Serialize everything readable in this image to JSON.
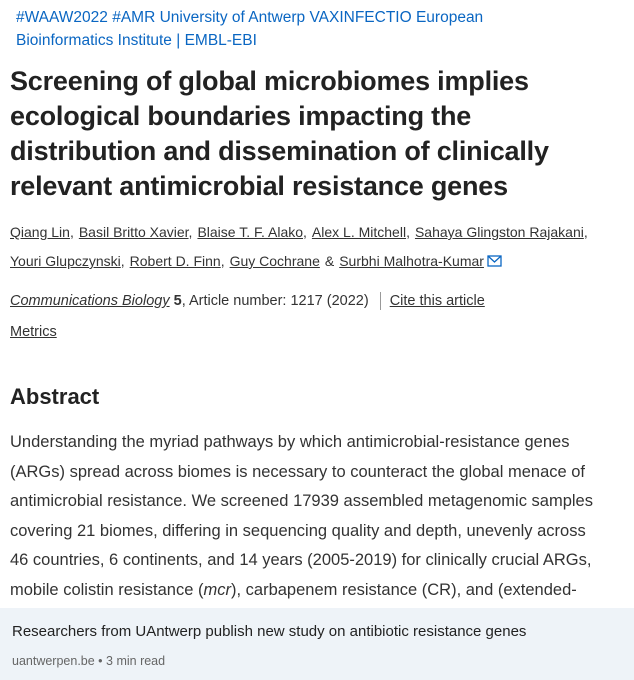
{
  "post": {
    "text": "#WAAW2022 #AMR University of Antwerp VAXINFECTIO European Bioinformatics Institute | EMBL-EBI"
  },
  "article": {
    "title_lines": [
      "Screening of global microbiomes implies",
      "ecological boundaries impacting the",
      "distribution and dissemination of clinically",
      "relevant antimicrobial resistance genes"
    ],
    "author_lines": [
      [
        "Qiang Lin",
        "Basil Britto Xavier",
        "Blaise T. F. Alako",
        "Alex L. Mitchell",
        "Sahaya Glingston Rajakani"
      ],
      [
        "Youri Glupczynski",
        "Robert D. Finn",
        "Guy Cochrane",
        "Surbhi Malhotra-Kumar"
      ]
    ],
    "separator": ",",
    "conjunction": "&",
    "journal": "Communications Biology",
    "volume": "5",
    "article_number": ", Article number: 1217 (2022)",
    "cite": "Cite this article",
    "metrics": "Metrics",
    "abstract_heading": "Abstract",
    "abstract_lines": [
      "Understanding the myriad pathways by which antimicrobial-resistance genes",
      "(ARGs) spread across biomes is necessary to counteract the global menace of",
      "antimicrobial resistance. We screened 17939 assembled metagenomic samples",
      "covering 21 biomes, differing in sequencing quality and depth, unevenly across",
      "46 countries, 6 continents, and 14 years (2005-2019) for clinically crucial ARGs,"
    ],
    "abstract_last_line": [
      "mobile colistin resistance (",
      "mcr",
      "), carbapenem resistance (CR), and (extended-"
    ]
  },
  "link_card": {
    "title": "Researchers from UAntwerp publish new study on antibiotic resistance genes",
    "meta": "uantwerpen.be • 3 min read"
  }
}
